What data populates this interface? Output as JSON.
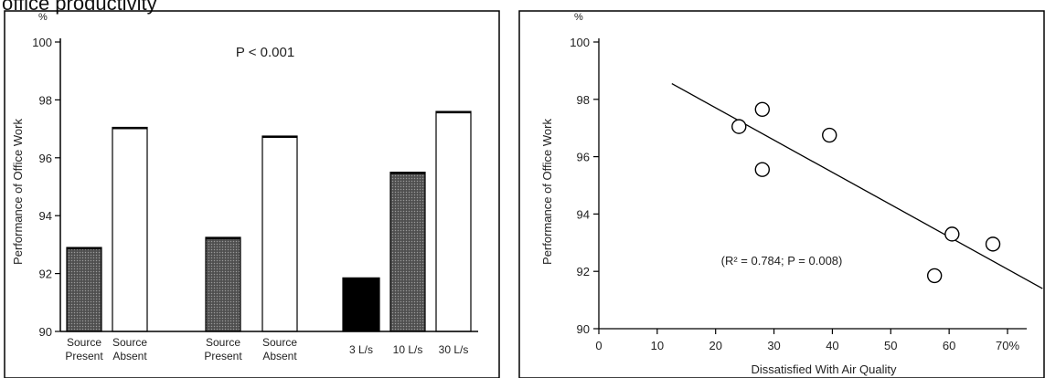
{
  "caption_fragment": "office productivity",
  "chart_data": [
    {
      "type": "bar",
      "ylabel": "Performance of Office Work",
      "y_unit": "%",
      "ylim": [
        90,
        100
      ],
      "yticks": [
        90,
        92,
        94,
        96,
        98,
        100
      ],
      "annotation": "P < 0.001",
      "grid": false,
      "bars": [
        {
          "label_lines": [
            "Source",
            "Present"
          ],
          "value": 92.9,
          "fill": "dotted-gray"
        },
        {
          "label_lines": [
            "Source",
            "Absent"
          ],
          "value": 97.05,
          "fill": "white"
        },
        {
          "label_lines": [
            "Source",
            "Present"
          ],
          "value": 93.25,
          "fill": "dotted-gray"
        },
        {
          "label_lines": [
            "Source",
            "Absent"
          ],
          "value": 96.75,
          "fill": "white"
        },
        {
          "label_lines": [
            "3 L/s"
          ],
          "value": 91.85,
          "fill": "black"
        },
        {
          "label_lines": [
            "10 L/s"
          ],
          "value": 95.5,
          "fill": "dotted-gray"
        },
        {
          "label_lines": [
            "30 L/s"
          ],
          "value": 97.6,
          "fill": "white"
        }
      ]
    },
    {
      "type": "scatter",
      "ylabel": "Performance of Office Work",
      "y_unit": "%",
      "xlabel": "Dissatisfied With Air Quality",
      "xlim": [
        0,
        75
      ],
      "ylim": [
        90,
        100
      ],
      "xticks": [
        {
          "value": 0,
          "label": "0"
        },
        {
          "value": 10,
          "label": "10"
        },
        {
          "value": 20,
          "label": "20"
        },
        {
          "value": 30,
          "label": "30"
        },
        {
          "value": 40,
          "label": "40"
        },
        {
          "value": 50,
          "label": "50"
        },
        {
          "value": 60,
          "label": "60"
        },
        {
          "value": 70,
          "label": "70%"
        }
      ],
      "yticks": [
        90,
        92,
        94,
        96,
        98,
        100
      ],
      "annotation": "(R² = 0.784; P = 0.008)",
      "grid": false,
      "points": [
        {
          "x": 24,
          "y": 97.05
        },
        {
          "x": 28,
          "y": 97.65
        },
        {
          "x": 28,
          "y": 95.55
        },
        {
          "x": 39.5,
          "y": 96.75
        },
        {
          "x": 57.5,
          "y": 91.85
        },
        {
          "x": 60.5,
          "y": 93.3
        },
        {
          "x": 67.5,
          "y": 92.95
        }
      ],
      "regression_line": {
        "x": [
          12.5,
          76
        ],
        "y": [
          98.55,
          91.4
        ]
      }
    }
  ]
}
